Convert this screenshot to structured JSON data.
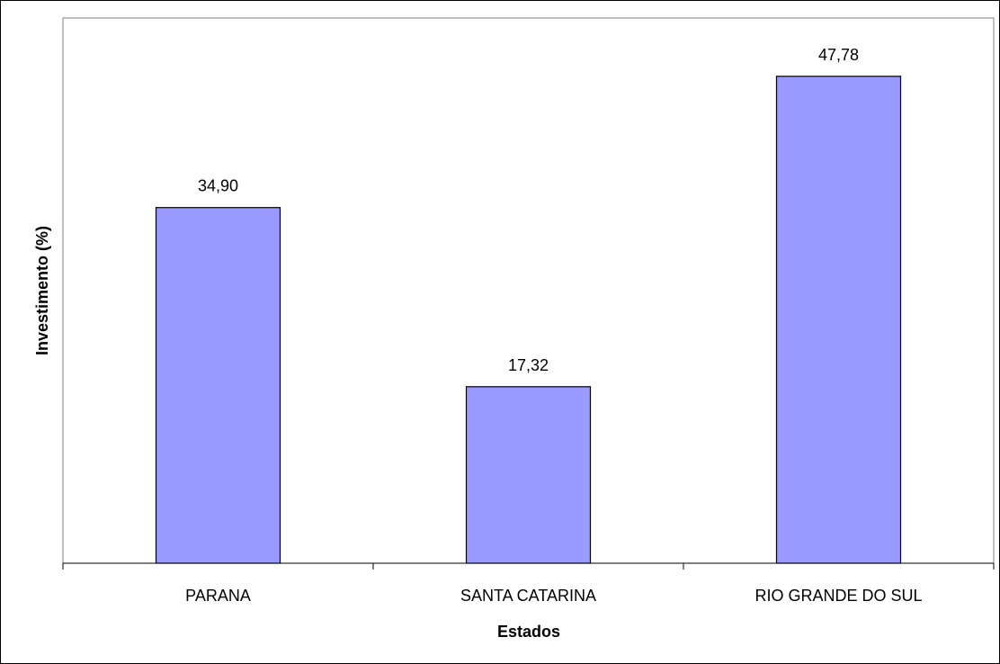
{
  "chart_data": {
    "type": "bar",
    "categories": [
      "PARANA",
      "SANTA CATARINA",
      "RIO GRANDE DO SUL"
    ],
    "values": [
      34.9,
      17.32,
      47.78
    ],
    "data_labels": [
      "34,90",
      "17,32",
      "47,78"
    ],
    "title": "",
    "xlabel": "Estados",
    "ylabel": "Investimento (%)",
    "ylim": [
      0,
      53.5
    ],
    "grid": false,
    "legend": "none",
    "colors": {
      "bar_fill": "#9999ff",
      "bar_stroke": "#000000",
      "axis": "#000000"
    }
  }
}
